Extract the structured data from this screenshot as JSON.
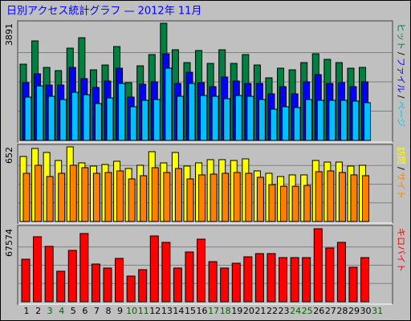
{
  "chart_data": [
    {
      "type": "bar",
      "title": "日別アクセス統計グラフ — 2012年 11月",
      "categories": [
        "1",
        "2",
        "3",
        "4",
        "5",
        "6",
        "7",
        "8",
        "9",
        "10",
        "11",
        "12",
        "13",
        "14",
        "15",
        "16",
        "17",
        "18",
        "19",
        "20",
        "21",
        "22",
        "23",
        "24",
        "25",
        "26",
        "27",
        "28",
        "29",
        "30",
        "31"
      ],
      "category_colors": [
        "#000000",
        "#000000",
        "#006400",
        "#006400",
        "#000000",
        "#000000",
        "#000000",
        "#000000",
        "#000000",
        "#006400",
        "#006400",
        "#000000",
        "#000000",
        "#000000",
        "#000000",
        "#000000",
        "#006400",
        "#006400",
        "#000000",
        "#000000",
        "#000000",
        "#000000",
        "#000000",
        "#006400",
        "#006400",
        "#000000",
        "#000000",
        "#000000",
        "#000000",
        "#000000",
        "#006400"
      ],
      "legend_separator": "/",
      "ylim": [
        0,
        3891
      ],
      "yticks": [
        3891
      ],
      "series": [
        {
          "name": "ヒット",
          "color": "#008040",
          "values": [
            2532,
            3305,
            2425,
            2319,
            3065,
            3411,
            2345,
            2505,
            3118,
            1919,
            2478,
            2852,
            3891,
            3011,
            2585,
            2985,
            2558,
            3011,
            2558,
            2852,
            2505,
            2079,
            2399,
            2345,
            2585,
            2878,
            2692,
            2585,
            2399,
            2425,
            null
          ]
        },
        {
          "name": "ファイル",
          "color": "#0000ff",
          "values": [
            1919,
            2212,
            1839,
            1839,
            2425,
            2052,
            1759,
            1972,
            2399,
            1439,
            1866,
            1945,
            2878,
            1892,
            2265,
            1919,
            1786,
            2105,
            1972,
            1892,
            1892,
            1546,
            1786,
            1546,
            1945,
            2185,
            1892,
            1919,
            1786,
            1945,
            null
          ]
        },
        {
          "name": "ページ",
          "color": "#00c0ff",
          "values": [
            1439,
            1812,
            1466,
            1359,
            1599,
            1519,
            1226,
            1412,
            1892,
            1119,
            1333,
            1359,
            2399,
            1466,
            1892,
            1492,
            1466,
            1386,
            1492,
            1466,
            1359,
            1039,
            1119,
            1093,
            1359,
            1333,
            1333,
            1333,
            1306,
            1253,
            null
          ]
        }
      ]
    },
    {
      "type": "bar",
      "legend_separator": "/",
      "ylim": [
        0,
        652
      ],
      "yticks": [
        652
      ],
      "series": [
        {
          "name": "訪問",
          "color": "#ffff00",
          "values": [
            568,
            638,
            603,
            533,
            652,
            512,
            484,
            498,
            526,
            463,
            491,
            610,
            512,
            603,
            484,
            512,
            540,
            540,
            533,
            547,
            442,
            421,
            393,
            407,
            407,
            533,
            519,
            519,
            484,
            491,
            null
          ]
        },
        {
          "name": "サイト",
          "color": "#ff8000",
          "values": [
            421,
            491,
            393,
            421,
            491,
            470,
            421,
            428,
            442,
            372,
            400,
            470,
            428,
            463,
            372,
            407,
            414,
            421,
            428,
            421,
            386,
            322,
            308,
            308,
            315,
            435,
            442,
            428,
            407,
            400,
            null
          ]
        }
      ]
    },
    {
      "type": "bar",
      "ylim": [
        0,
        67574
      ],
      "yticks": [
        67574
      ],
      "series": [
        {
          "name": "キロバイト",
          "color": "#ff0000",
          "values": [
            39358,
            60151,
            51239,
            28219,
            47526,
            63121,
            34902,
            31189,
            40100,
            23763,
            29704,
            60893,
            54952,
            31189,
            46041,
            57923,
            37130,
            31189,
            35645,
            41586,
            44556,
            44556,
            40843,
            40843,
            40843,
            67574,
            49754,
            54952,
            31932,
            40843,
            null
          ]
        }
      ]
    }
  ]
}
